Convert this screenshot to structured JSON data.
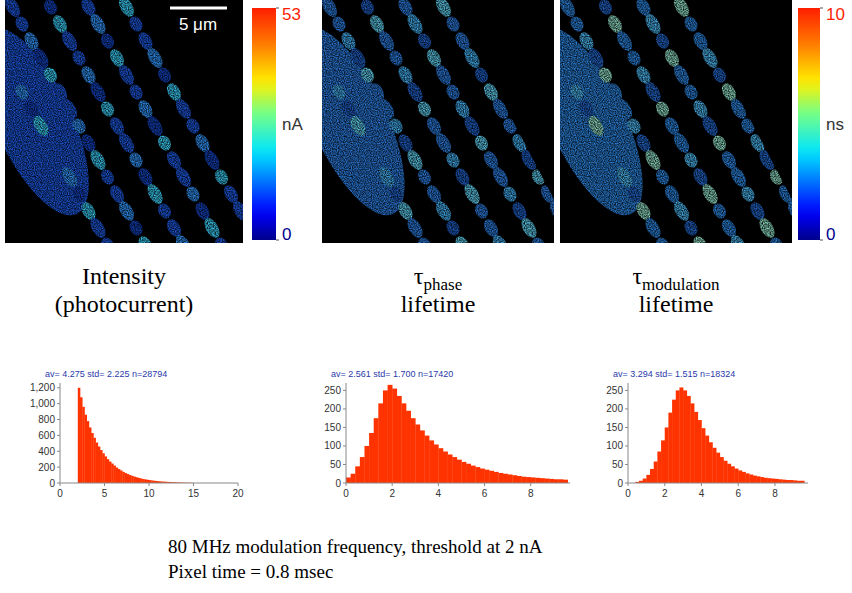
{
  "chart_data": [
    {
      "type": "histogram",
      "title_main": "Intensity",
      "title_line2": "(photocurrent)",
      "annotation": "av= 4.275  std= 2.225  n=28794",
      "color": "#ff3300",
      "bins": [
        2,
        2.25,
        2.5,
        2.75,
        3,
        3.25,
        3.5,
        3.75,
        4,
        4.25,
        4.5,
        4.75,
        5,
        5.25,
        5.5,
        5.75,
        6,
        6.25,
        6.5,
        6.75,
        7,
        7.25,
        7.5,
        7.75,
        8,
        8.25,
        8.5,
        8.75,
        9,
        9.25,
        9.5,
        9.75,
        10,
        10.25,
        10.5,
        10.75,
        11,
        11.25,
        11.5,
        11.75,
        12,
        12.25,
        12.5,
        12.75,
        13,
        13.25,
        13.5,
        13.75,
        14,
        14.25,
        14.5,
        14.75,
        15
      ],
      "counts": [
        1200,
        1080,
        960,
        860,
        780,
        700,
        630,
        570,
        510,
        460,
        415,
        375,
        335,
        300,
        270,
        245,
        220,
        195,
        175,
        158,
        140,
        125,
        112,
        100,
        90,
        80,
        72,
        64,
        57,
        50,
        45,
        40,
        36,
        32,
        28,
        25,
        22,
        20,
        18,
        16,
        14,
        12,
        11,
        10,
        8,
        7,
        6,
        5,
        4,
        4,
        3,
        2
      ],
      "xlim": [
        0,
        20
      ],
      "xticks": [
        0,
        5,
        10,
        15,
        20
      ],
      "ylim": [
        0,
        1260
      ],
      "yticks": [
        0,
        200,
        400,
        600,
        800,
        {
          "value": 1000,
          "label": "1,000"
        },
        {
          "value": 1200,
          "label": "1,200"
        }
      ]
    },
    {
      "type": "histogram",
      "title_main": "τ",
      "title_sub": "phase",
      "title_line2": "lifetime",
      "annotation": "av= 2.561  std= 1.700  n=17420",
      "color": "#ff3300",
      "bins": [
        0,
        0.2,
        0.4,
        0.6,
        0.8,
        1,
        1.2,
        1.4,
        1.6,
        1.8,
        2,
        2.2,
        2.4,
        2.6,
        2.8,
        3,
        3.2,
        3.4,
        3.6,
        3.8,
        4,
        4.2,
        4.4,
        4.6,
        4.8,
        5,
        5.2,
        5.4,
        5.6,
        5.8,
        6,
        6.2,
        6.4,
        6.6,
        6.8,
        7,
        7.2,
        7.4,
        7.6,
        7.8,
        8,
        8.2,
        8.4,
        8.6,
        8.8,
        9,
        9.2,
        9.4,
        9.6
      ],
      "counts": [
        15,
        25,
        45,
        70,
        100,
        135,
        175,
        215,
        250,
        265,
        255,
        235,
        215,
        195,
        175,
        158,
        142,
        128,
        115,
        104,
        94,
        85,
        77,
        70,
        63,
        57,
        52,
        47,
        43,
        39,
        36,
        33,
        30,
        27,
        25,
        23,
        21,
        19,
        17,
        16,
        15,
        14,
        13,
        12,
        11,
        10,
        10,
        9
      ],
      "xlim": [
        0,
        9.7
      ],
      "xticks": [
        0,
        2,
        4,
        6,
        8
      ],
      "ylim": [
        0,
        270
      ],
      "yticks": [
        0,
        50,
        100,
        150,
        200,
        250
      ]
    },
    {
      "type": "histogram",
      "title_main": "τ",
      "title_sub": "modulation",
      "title_line2": "lifetime",
      "annotation": "av= 3.294  std= 1.515  n=18324",
      "color": "#ff3300",
      "bins": [
        0.4,
        0.6,
        0.8,
        1,
        1.2,
        1.4,
        1.6,
        1.8,
        2,
        2.2,
        2.4,
        2.6,
        2.8,
        3,
        3.2,
        3.4,
        3.6,
        3.8,
        4,
        4.2,
        4.4,
        4.6,
        4.8,
        5,
        5.2,
        5.4,
        5.6,
        5.8,
        6,
        6.2,
        6.4,
        6.6,
        6.8,
        7,
        7.2,
        7.4,
        7.6,
        7.8,
        8,
        8.2,
        8.4,
        8.6,
        8.8,
        9,
        9.2,
        9.4,
        9.6
      ],
      "counts": [
        3,
        6,
        12,
        22,
        38,
        58,
        85,
        115,
        150,
        190,
        225,
        250,
        258,
        250,
        235,
        215,
        192,
        170,
        148,
        128,
        110,
        95,
        82,
        70,
        60,
        52,
        45,
        39,
        34,
        30,
        26,
        23,
        20,
        18,
        16,
        14,
        13,
        12,
        11,
        10,
        9,
        8,
        8,
        7,
        6,
        6
      ],
      "xlim": [
        0,
        9.8
      ],
      "xticks": [
        0,
        2,
        4,
        6,
        8
      ],
      "ylim": [
        0,
        270
      ],
      "yticks": [
        0,
        50,
        100,
        150,
        200,
        250
      ]
    }
  ],
  "colorbars": [
    {
      "range": [
        0,
        53
      ],
      "ticks": [
        0,
        53
      ],
      "label": "nA"
    },
    {
      "range": [
        0,
        10
      ],
      "ticks": [
        0,
        10
      ],
      "label": "ns"
    }
  ],
  "scale_bar": "5 μm",
  "caption": [
    "80 MHz modulation frequency, threshold at 2 nA",
    "Pixel time = 0.8 msec"
  ]
}
